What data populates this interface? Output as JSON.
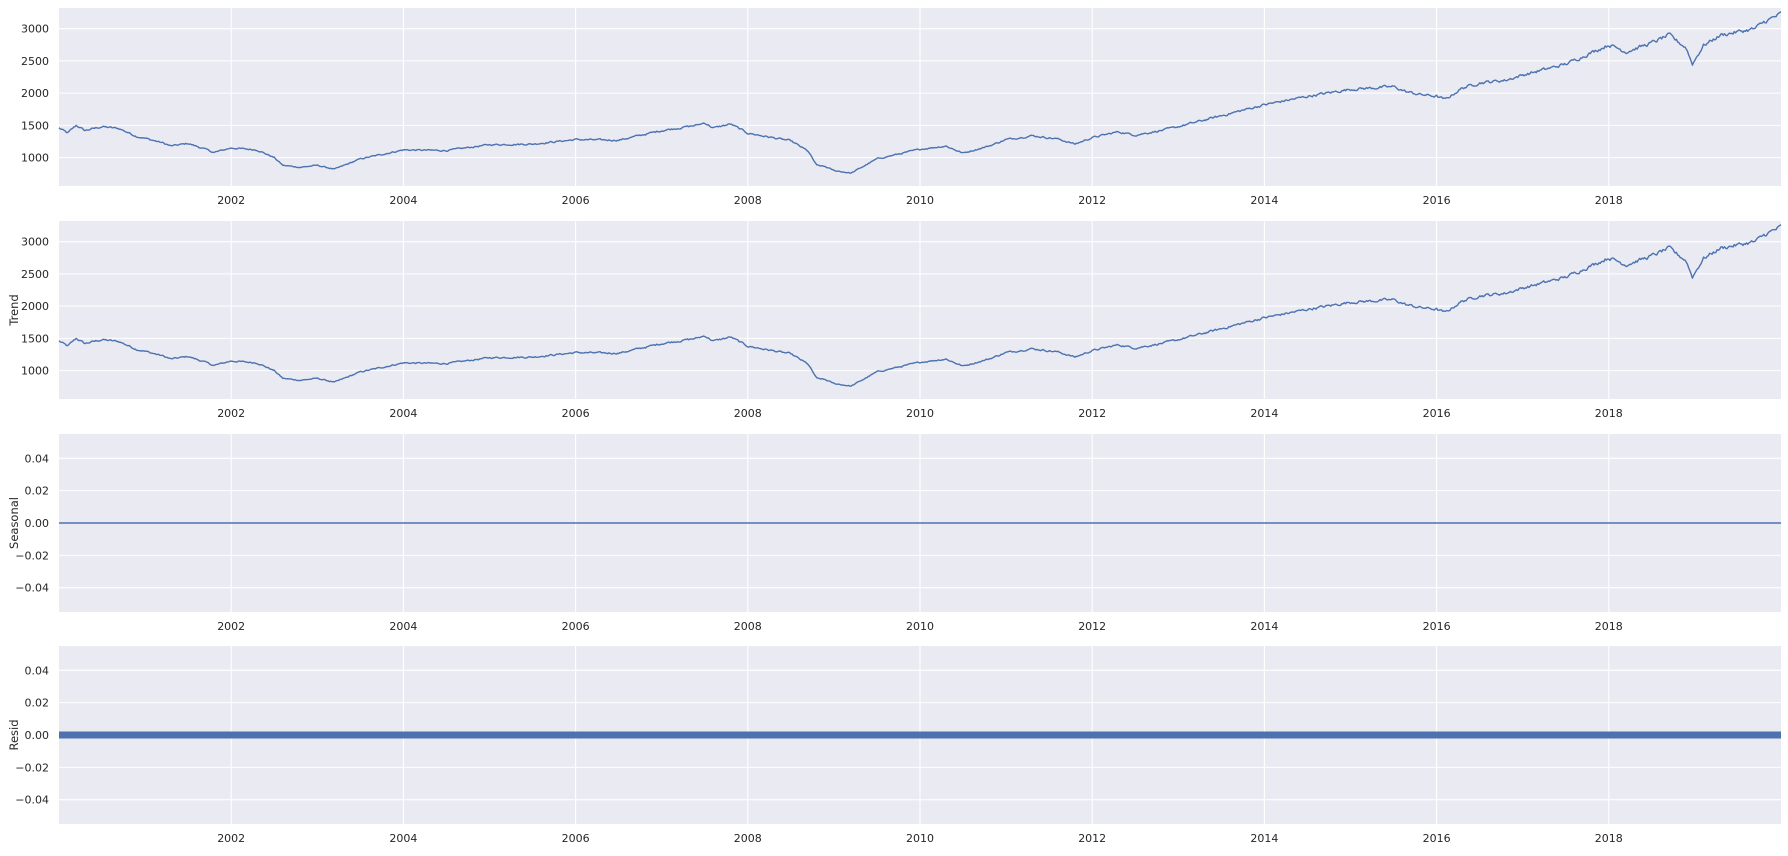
{
  "style": {
    "axes_facecolor": "#eaeaf2",
    "grid_color": "#ffffff",
    "line_color": "#4c72b0",
    "text_color": "#262626"
  },
  "chart_data": [
    {
      "type": "line",
      "ylabel": "",
      "grid": true,
      "legend": "none",
      "xlim": [
        2000.0,
        2020.0
      ],
      "ylim": [
        560,
        3320
      ],
      "xticks": [
        2002,
        2004,
        2006,
        2008,
        2010,
        2012,
        2014,
        2016,
        2018
      ],
      "xtick_labels": [
        "2002",
        "2004",
        "2006",
        "2008",
        "2010",
        "2012",
        "2014",
        "2016",
        "2018"
      ],
      "yticks": [
        1000,
        1500,
        2000,
        2500,
        3000
      ],
      "ytick_labels": [
        "1000",
        "1500",
        "2000",
        "2500",
        "3000"
      ],
      "series": [
        {
          "x": [
            2000.0,
            2000.1,
            2000.2,
            2000.3,
            2000.5,
            2000.7,
            2000.9,
            2001.0,
            2001.2,
            2001.3,
            2001.5,
            2001.7,
            2001.8,
            2002.0,
            2002.3,
            2002.5,
            2002.6,
            2002.8,
            2003.0,
            2003.2,
            2003.5,
            2004.0,
            2004.5,
            2005.0,
            2005.5,
            2006.0,
            2006.5,
            2007.0,
            2007.4,
            2007.5,
            2007.6,
            2007.8,
            2008.0,
            2008.2,
            2008.5,
            2008.7,
            2008.8,
            2008.9,
            2009.0,
            2009.2,
            2009.5,
            2010.0,
            2010.3,
            2010.5,
            2010.8,
            2011.0,
            2011.3,
            2011.6,
            2011.8,
            2012.0,
            2012.3,
            2012.5,
            2012.8,
            2013.0,
            2013.5,
            2014.0,
            2014.5,
            2015.0,
            2015.5,
            2015.65,
            2015.8,
            2016.0,
            2016.1,
            2016.3,
            2016.5,
            2016.8,
            2017.0,
            2017.5,
            2018.0,
            2018.1,
            2018.2,
            2018.5,
            2018.7,
            2018.9,
            2018.97,
            2019.1,
            2019.3,
            2019.5,
            2019.7,
            2019.8,
            2020.0
          ],
          "values": [
            1460,
            1380,
            1500,
            1420,
            1480,
            1450,
            1330,
            1300,
            1230,
            1180,
            1220,
            1130,
            1080,
            1150,
            1120,
            1000,
            880,
            850,
            880,
            820,
            980,
            1120,
            1110,
            1200,
            1210,
            1280,
            1270,
            1420,
            1500,
            1540,
            1460,
            1520,
            1380,
            1330,
            1260,
            1100,
            880,
            860,
            800,
            760,
            980,
            1130,
            1180,
            1070,
            1180,
            1280,
            1340,
            1290,
            1210,
            1310,
            1400,
            1350,
            1420,
            1480,
            1650,
            1820,
            1950,
            2060,
            2100,
            2020,
            1980,
            1950,
            1900,
            2080,
            2160,
            2200,
            2280,
            2450,
            2750,
            2700,
            2640,
            2780,
            2900,
            2700,
            2450,
            2740,
            2900,
            2950,
            3000,
            3100,
            3230
          ]
        }
      ]
    },
    {
      "type": "line",
      "ylabel": "Trend",
      "grid": true,
      "legend": "none",
      "xlim": [
        2000.0,
        2020.0
      ],
      "ylim": [
        560,
        3320
      ],
      "xticks": [
        2002,
        2004,
        2006,
        2008,
        2010,
        2012,
        2014,
        2016,
        2018
      ],
      "xtick_labels": [
        "2002",
        "2004",
        "2006",
        "2008",
        "2010",
        "2012",
        "2014",
        "2016",
        "2018"
      ],
      "yticks": [
        1000,
        1500,
        2000,
        2500,
        3000
      ],
      "ytick_labels": [
        "1000",
        "1500",
        "2000",
        "2500",
        "3000"
      ],
      "series": [
        {
          "x": [
            2000.0,
            2000.1,
            2000.2,
            2000.3,
            2000.5,
            2000.7,
            2000.9,
            2001.0,
            2001.2,
            2001.3,
            2001.5,
            2001.7,
            2001.8,
            2002.0,
            2002.3,
            2002.5,
            2002.6,
            2002.8,
            2003.0,
            2003.2,
            2003.5,
            2004.0,
            2004.5,
            2005.0,
            2005.5,
            2006.0,
            2006.5,
            2007.0,
            2007.4,
            2007.5,
            2007.6,
            2007.8,
            2008.0,
            2008.2,
            2008.5,
            2008.7,
            2008.8,
            2008.9,
            2009.0,
            2009.2,
            2009.5,
            2010.0,
            2010.3,
            2010.5,
            2010.8,
            2011.0,
            2011.3,
            2011.6,
            2011.8,
            2012.0,
            2012.3,
            2012.5,
            2012.8,
            2013.0,
            2013.5,
            2014.0,
            2014.5,
            2015.0,
            2015.5,
            2015.65,
            2015.8,
            2016.0,
            2016.1,
            2016.3,
            2016.5,
            2016.8,
            2017.0,
            2017.5,
            2018.0,
            2018.1,
            2018.2,
            2018.5,
            2018.7,
            2018.9,
            2018.97,
            2019.1,
            2019.3,
            2019.5,
            2019.7,
            2019.8,
            2020.0
          ],
          "values": [
            1460,
            1380,
            1500,
            1420,
            1480,
            1450,
            1330,
            1300,
            1230,
            1180,
            1220,
            1130,
            1080,
            1150,
            1120,
            1000,
            880,
            850,
            880,
            820,
            980,
            1120,
            1110,
            1200,
            1210,
            1280,
            1270,
            1420,
            1500,
            1540,
            1460,
            1520,
            1380,
            1330,
            1260,
            1100,
            880,
            860,
            800,
            760,
            980,
            1130,
            1180,
            1070,
            1180,
            1280,
            1340,
            1290,
            1210,
            1310,
            1400,
            1350,
            1420,
            1480,
            1650,
            1820,
            1950,
            2060,
            2100,
            2020,
            1980,
            1950,
            1900,
            2080,
            2160,
            2200,
            2280,
            2450,
            2750,
            2700,
            2640,
            2780,
            2900,
            2700,
            2450,
            2740,
            2900,
            2950,
            3000,
            3100,
            3230
          ]
        }
      ]
    },
    {
      "type": "line",
      "ylabel": "Seasonal",
      "grid": true,
      "legend": "none",
      "xlim": [
        2000.0,
        2020.0
      ],
      "ylim": [
        -0.055,
        0.055
      ],
      "xticks": [
        2002,
        2004,
        2006,
        2008,
        2010,
        2012,
        2014,
        2016,
        2018
      ],
      "xtick_labels": [
        "2002",
        "2004",
        "2006",
        "2008",
        "2010",
        "2012",
        "2014",
        "2016",
        "2018"
      ],
      "yticks": [
        -0.04,
        -0.02,
        0.0,
        0.02,
        0.04
      ],
      "ytick_labels": [
        "−0.04",
        "−0.02",
        "0.00",
        "0.02",
        "0.04"
      ],
      "series": [
        {
          "x": [
            2000.0,
            2020.0
          ],
          "values": [
            0.0,
            0.0
          ]
        }
      ]
    },
    {
      "type": "scatter",
      "ylabel": "Resid",
      "grid": true,
      "legend": "none",
      "xlim": [
        2000.0,
        2020.0
      ],
      "ylim": [
        -0.055,
        0.055
      ],
      "xticks": [
        2002,
        2004,
        2006,
        2008,
        2010,
        2012,
        2014,
        2016,
        2018
      ],
      "xtick_labels": [
        "2002",
        "2004",
        "2006",
        "2008",
        "2010",
        "2012",
        "2014",
        "2016",
        "2018"
      ],
      "yticks": [
        -0.04,
        -0.02,
        0.0,
        0.02,
        0.04
      ],
      "ytick_labels": [
        "−0.04",
        "−0.02",
        "0.00",
        "0.02",
        "0.04"
      ],
      "series": [
        {
          "x": [
            2000.0,
            2020.0
          ],
          "values": [
            0.0,
            0.0
          ]
        }
      ]
    }
  ]
}
